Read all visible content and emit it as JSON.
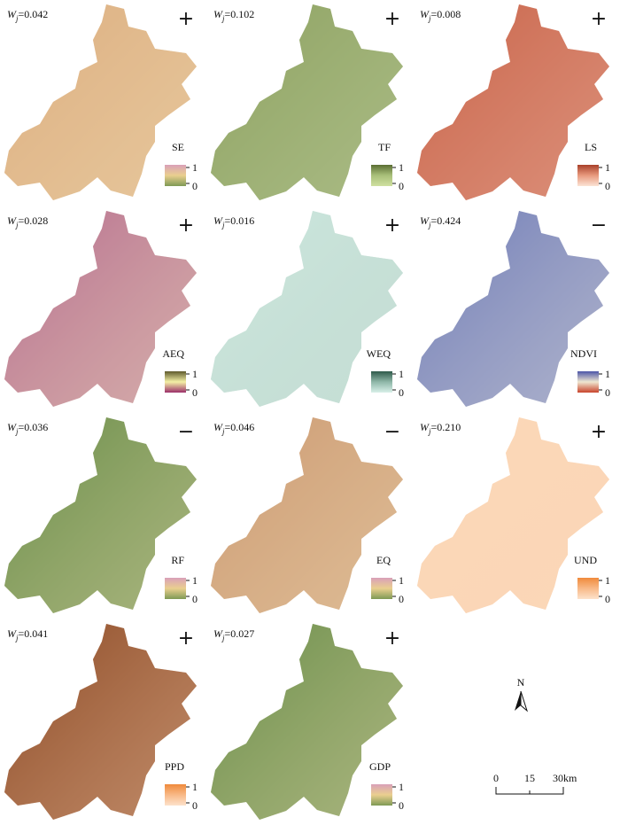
{
  "weight_symbol": {
    "main": "W",
    "sub": "j",
    "eq": "="
  },
  "legend_labels": {
    "max": "1",
    "min": "0"
  },
  "panels": [
    {
      "name": "SE",
      "weight": "0.042",
      "sign": "+",
      "map_color": "#dcae82",
      "legend_colors": [
        "#d9a0b8",
        "#eacf8f",
        "#7f9a55"
      ]
    },
    {
      "name": "TF",
      "weight": "0.102",
      "sign": "+",
      "map_color": "#8ea262",
      "legend_colors": [
        "#5b6e33",
        "#a9c07a",
        "#cfe0a0"
      ]
    },
    {
      "name": "LS",
      "weight": "0.008",
      "sign": "+",
      "map_color": "#c9654a",
      "legend_colors": [
        "#a8402a",
        "#e89a7e",
        "#fbe3d5"
      ]
    },
    {
      "name": "AEQ",
      "weight": "0.028",
      "sign": "+",
      "map_color": "#b76d8f",
      "legend_colors": [
        "#5f5a2c",
        "#f4f0a6",
        "#9b2f6a"
      ]
    },
    {
      "name": "WEQ",
      "weight": "0.016",
      "sign": "+",
      "map_color": "#cde7de",
      "legend_colors": [
        "#2f5a4a",
        "#8fb7a8",
        "#d8efe8"
      ]
    },
    {
      "name": "NDVI",
      "weight": "0.424",
      "sign": "−",
      "map_color": "#6f7cb8",
      "legend_colors": [
        "#4c55a8",
        "#efe7d0",
        "#c8442c"
      ]
    },
    {
      "name": "RF",
      "weight": "0.036",
      "sign": "−",
      "map_color": "#6a8e4a",
      "legend_colors": [
        "#d9a0b8",
        "#eacf8f",
        "#7f9a55"
      ]
    },
    {
      "name": "EQ",
      "weight": "0.046",
      "sign": "−",
      "map_color": "#cc9a74",
      "legend_colors": [
        "#d9a0b8",
        "#eacf8f",
        "#7f9a55"
      ]
    },
    {
      "name": "UND",
      "weight": "0.210",
      "sign": "+",
      "map_color": "#fbd9b9",
      "legend_colors": [
        "#f08a3c",
        "#f8b987",
        "#fde2cb"
      ]
    },
    {
      "name": "PPD",
      "weight": "0.041",
      "sign": "+",
      "map_color": "#8c4a26",
      "legend_colors": [
        "#f08a3c",
        "#f8b987",
        "#fde2cb"
      ]
    },
    {
      "name": "GDP",
      "weight": "0.027",
      "sign": "+",
      "map_color": "#6a8e4a",
      "legend_colors": [
        "#d9a0b8",
        "#eacf8f",
        "#7f9a55"
      ]
    }
  ],
  "north": "N",
  "scale_bar": {
    "ticks": [
      "0",
      "15",
      "30"
    ],
    "unit": "km"
  }
}
